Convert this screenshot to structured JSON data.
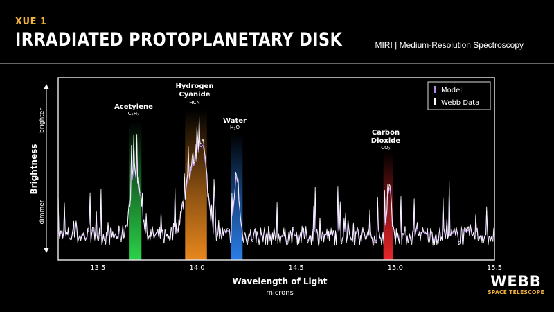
{
  "header": {
    "kicker": "XUE 1",
    "title": "IRRADIATED PROTOPLANETARY DISK",
    "instrument": "MIRI | Medium-Resolution Spectroscopy"
  },
  "branding": {
    "name": "WEBB",
    "subtitle": "SPACE TELESCOPE"
  },
  "chart_data": {
    "type": "line",
    "xlabel": "Wavelength of Light",
    "xunit": "microns",
    "ylabel": "Brightness",
    "y_high_label": "brighter",
    "y_low_label": "dimmer",
    "xlim": [
      13.3,
      15.5
    ],
    "xticks": [
      "13.5",
      "14.0",
      "14.5",
      "15.0",
      "15.5"
    ],
    "grid": false,
    "legend_position": "top-right",
    "legend": [
      {
        "label": "Model",
        "color": "#b48ce6"
      },
      {
        "label": "Webb Data",
        "color": "#ffffff"
      }
    ],
    "bands": [
      {
        "name": "Acetylene",
        "formula": "C2H2",
        "formula_main": "C",
        "formula_sub1": "2",
        "formula_mid": "H",
        "formula_sub2": "2",
        "x_start": 13.66,
        "x_end": 13.72,
        "color": "#2bd14a"
      },
      {
        "name": "Hydrogen Cyanide",
        "name_line1": "Hydrogen",
        "name_line2": "Cyanide",
        "formula": "HCN",
        "x_start": 13.94,
        "x_end": 14.05,
        "color": "#e8871e"
      },
      {
        "name": "Water",
        "formula": "H2O",
        "formula_main": "H",
        "formula_sub1": "2",
        "formula_mid": "O",
        "x_start": 14.17,
        "x_end": 14.23,
        "color": "#2a7de8"
      },
      {
        "name": "Carbon Dioxide",
        "name_line1": "Carbon",
        "name_line2": "Dioxide",
        "formula": "CO2",
        "formula_main": "CO",
        "formula_sub1": "2",
        "x_start": 14.94,
        "x_end": 14.99,
        "color": "#e8262a"
      }
    ],
    "series": [
      {
        "name": "Webb Data",
        "color": "#ffffff"
      },
      {
        "name": "Model",
        "color": "#b48ce6"
      }
    ]
  }
}
